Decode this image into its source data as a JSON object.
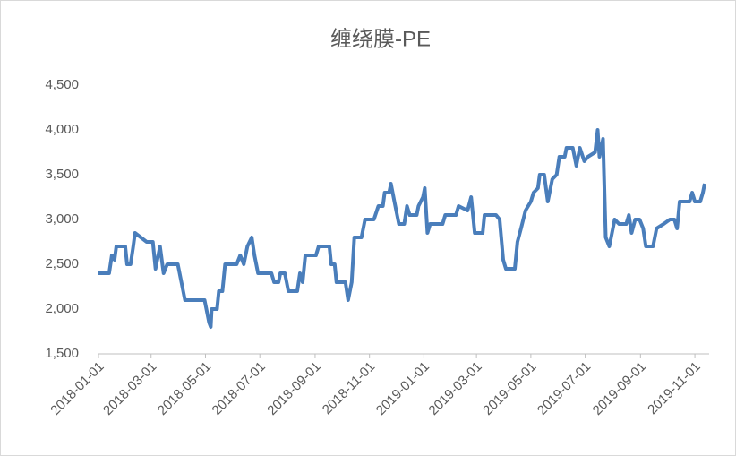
{
  "chart_data": {
    "type": "line",
    "title": "缠绕膜-PE",
    "x": [
      "2018-01-01",
      "2018-01-13",
      "2018-01-16",
      "2018-01-19",
      "2018-01-21",
      "2018-01-31",
      "2018-02-02",
      "2018-02-06",
      "2018-02-09",
      "2018-02-11",
      "2018-02-24",
      "2018-03-03",
      "2018-03-06",
      "2018-03-11",
      "2018-03-15",
      "2018-03-19",
      "2018-03-31",
      "2018-04-04",
      "2018-04-08",
      "2018-04-30",
      "2018-05-05",
      "2018-05-07",
      "2018-05-08",
      "2018-05-14",
      "2018-05-16",
      "2018-05-20",
      "2018-05-23",
      "2018-06-05",
      "2018-06-09",
      "2018-06-13",
      "2018-06-17",
      "2018-06-22",
      "2018-06-25",
      "2018-06-29",
      "2018-07-14",
      "2018-07-17",
      "2018-07-22",
      "2018-07-24",
      "2018-07-29",
      "2018-08-02",
      "2018-08-12",
      "2018-08-15",
      "2018-08-18",
      "2018-08-21",
      "2018-09-02",
      "2018-09-05",
      "2018-09-17",
      "2018-09-19",
      "2018-09-23",
      "2018-09-25",
      "2018-10-05",
      "2018-10-08",
      "2018-10-12",
      "2018-10-15",
      "2018-10-23",
      "2018-10-27",
      "2018-11-06",
      "2018-11-11",
      "2018-11-16",
      "2018-11-18",
      "2018-11-23",
      "2018-11-25",
      "2018-11-29",
      "2018-12-04",
      "2018-12-10",
      "2018-12-13",
      "2018-12-16",
      "2018-12-24",
      "2018-12-26",
      "2018-12-31",
      "2019-01-02",
      "2019-01-05",
      "2019-01-08",
      "2019-01-22",
      "2019-01-25",
      "2019-02-06",
      "2019-02-09",
      "2019-02-19",
      "2019-02-23",
      "2019-02-27",
      "2019-03-08",
      "2019-03-10",
      "2019-03-23",
      "2019-03-27",
      "2019-03-31",
      "2019-04-03",
      "2019-04-13",
      "2019-04-16",
      "2019-04-20",
      "2019-04-25",
      "2019-05-01",
      "2019-05-04",
      "2019-05-09",
      "2019-05-11",
      "2019-05-16",
      "2019-05-20",
      "2019-05-25",
      "2019-05-30",
      "2019-06-02",
      "2019-06-08",
      "2019-06-10",
      "2019-06-17",
      "2019-06-21",
      "2019-06-25",
      "2019-06-30",
      "2019-07-04",
      "2019-07-12",
      "2019-07-15",
      "2019-07-17",
      "2019-07-21",
      "2019-07-24",
      "2019-07-28",
      "2019-08-03",
      "2019-08-08",
      "2019-08-16",
      "2019-08-19",
      "2019-08-22",
      "2019-08-26",
      "2019-08-31",
      "2019-09-04",
      "2019-09-07",
      "2019-09-15",
      "2019-09-19",
      "2019-09-27",
      "2019-10-04",
      "2019-10-09",
      "2019-10-12",
      "2019-10-15",
      "2019-10-26",
      "2019-10-29",
      "2019-11-01",
      "2019-11-07",
      "2019-11-10",
      "2019-11-12"
    ],
    "series": [
      {
        "name": "缠绕膜-PE",
        "color": "#4a7ebb",
        "values": [
          2400,
          2400,
          2600,
          2550,
          2700,
          2700,
          2500,
          2500,
          2700,
          2850,
          2750,
          2750,
          2450,
          2700,
          2400,
          2500,
          2500,
          2300,
          2100,
          2100,
          1850,
          1800,
          2000,
          2000,
          2200,
          2200,
          2500,
          2500,
          2600,
          2500,
          2700,
          2800,
          2600,
          2400,
          2400,
          2300,
          2300,
          2400,
          2400,
          2200,
          2200,
          2400,
          2300,
          2600,
          2600,
          2700,
          2700,
          2500,
          2500,
          2300,
          2300,
          2100,
          2300,
          2800,
          2800,
          3000,
          3000,
          3150,
          3150,
          3300,
          3300,
          3400,
          3200,
          2950,
          2950,
          3150,
          3050,
          3050,
          3150,
          3250,
          3350,
          2850,
          2950,
          2950,
          3050,
          3050,
          3150,
          3100,
          3250,
          2850,
          2850,
          3050,
          3050,
          3000,
          2550,
          2450,
          2450,
          2750,
          2900,
          3100,
          3200,
          3300,
          3350,
          3500,
          3500,
          3200,
          3450,
          3500,
          3700,
          3700,
          3800,
          3800,
          3600,
          3800,
          3650,
          3700,
          3750,
          4000,
          3700,
          3900,
          2800,
          2700,
          3000,
          2950,
          2950,
          3050,
          2850,
          3000,
          3000,
          2900,
          2700,
          2700,
          2900,
          2950,
          3000,
          3000,
          2900,
          3200,
          3200,
          3300,
          3200,
          3200,
          3300,
          3400
        ]
      }
    ],
    "xlim": [
      "2018-01-01",
      "2019-11-17"
    ],
    "xticks": [
      "2018-01-01",
      "2018-03-01",
      "2018-05-01",
      "2018-07-01",
      "2018-09-01",
      "2018-11-01",
      "2019-01-01",
      "2019-03-01",
      "2019-05-01",
      "2019-07-01",
      "2019-09-01",
      "2019-11-01"
    ],
    "ylim": [
      1500,
      4500
    ],
    "yticks": [
      {
        "value": 1500,
        "label": "1,500"
      },
      {
        "value": 2000,
        "label": "2,000"
      },
      {
        "value": 2500,
        "label": "2,500"
      },
      {
        "value": 3000,
        "label": "3,000"
      },
      {
        "value": 3500,
        "label": "3,500"
      },
      {
        "value": 4000,
        "label": "4,000"
      },
      {
        "value": 4500,
        "label": "4,500"
      }
    ],
    "grid": false
  }
}
